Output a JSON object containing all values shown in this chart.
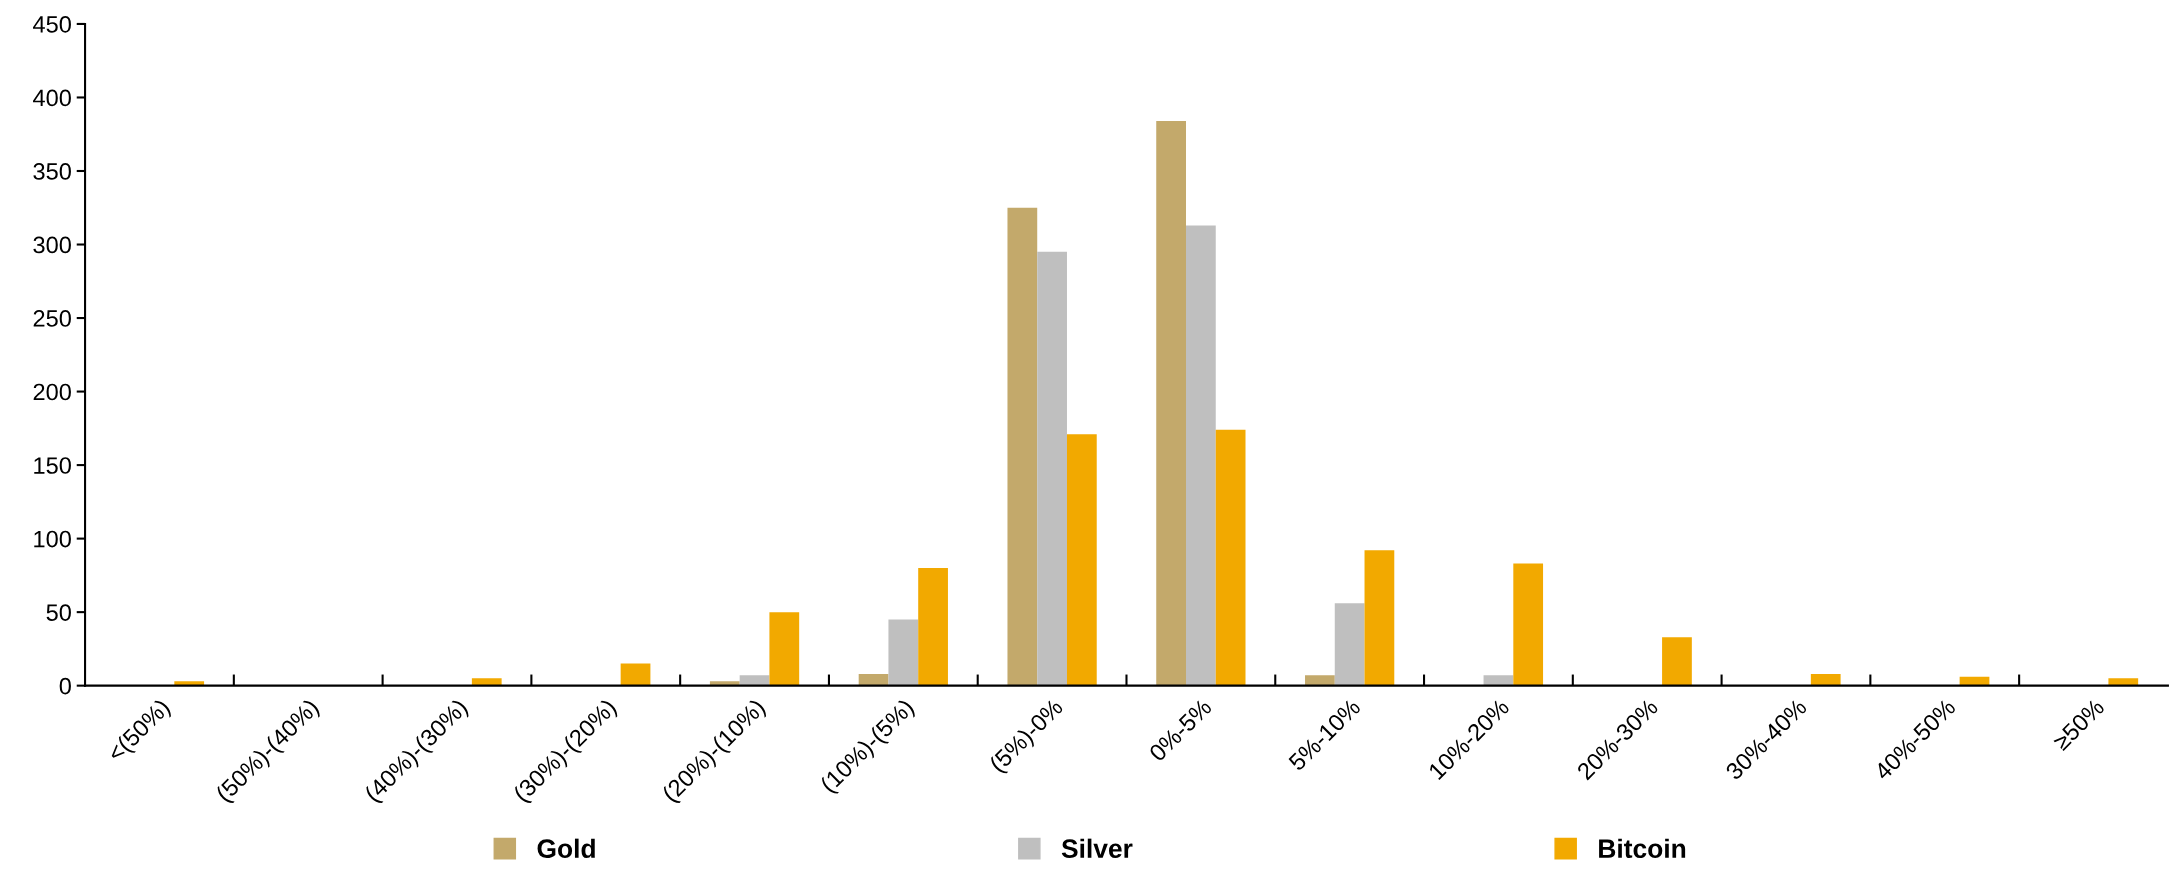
{
  "chart_data": {
    "type": "bar",
    "categories": [
      "<(50%)",
      "(50%)-(40%)",
      "(40%)-(30%)",
      "(30%)-(20%)",
      "(20%)-(10%)",
      "(10%)-(5%)",
      "(5%)-0%",
      "0%-5%",
      "5%-10%",
      "10%-20%",
      "20%-30%",
      "30%-40%",
      "40%-50%",
      "≥50%"
    ],
    "series": [
      {
        "name": "Gold",
        "color": "#c3a96b",
        "values": [
          0,
          0,
          0,
          0,
          3,
          8,
          325,
          384,
          7,
          0,
          0,
          0,
          0,
          0
        ]
      },
      {
        "name": "Silver",
        "color": "#bfbfbf",
        "values": [
          0,
          0,
          0,
          0,
          7,
          45,
          295,
          313,
          56,
          7,
          0,
          0,
          0,
          0
        ]
      },
      {
        "name": "Bitcoin",
        "color": "#f2a900",
        "values": [
          3,
          0,
          5,
          15,
          50,
          80,
          171,
          174,
          92,
          83,
          33,
          8,
          6,
          5
        ]
      }
    ],
    "ylim": [
      0,
      450
    ],
    "yticks": [
      0,
      50,
      100,
      150,
      200,
      250,
      300,
      350,
      400,
      450
    ],
    "grid": false,
    "legend": "bottom"
  }
}
